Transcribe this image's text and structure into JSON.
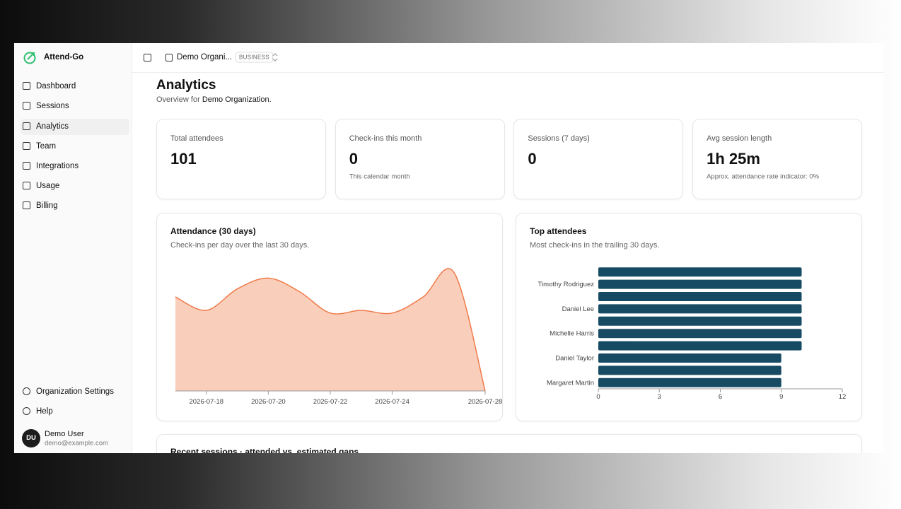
{
  "sidebar": {
    "brand": "Attend-Go",
    "nav": [
      "Dashboard",
      "Sessions",
      "Analytics",
      "Team",
      "Integrations",
      "Usage",
      "Billing"
    ],
    "footer_nav": [
      "Organization Settings",
      "Help"
    ],
    "user": {
      "initials": "DU",
      "name": "Demo User",
      "email": "demo@example.com"
    }
  },
  "topbar": {
    "org": "Demo Organi...",
    "plan": "BUSINESS"
  },
  "header": {
    "title": "Analytics",
    "subtitle": "Overview for",
    "org": "Demo Organization."
  },
  "stats": [
    {
      "label": "Total attendees",
      "value": "101"
    },
    {
      "label": "Check-ins this month",
      "value": "0",
      "note": "This calendar month"
    },
    {
      "label": "Sessions (7 days)",
      "value": "0"
    },
    {
      "label": "Avg session length",
      "value": "1h 25m",
      "note": "Approx. attendance rate indicator: 0%"
    }
  ],
  "chart_data": [
    {
      "type": "area",
      "title": "Attendance (30 days)",
      "subtitle": "Check-ins per day over the last 30 days.",
      "categories": [
        null,
        "2026-07-18",
        null,
        "2026-07-20",
        null,
        "2026-07-22",
        null,
        "2026-07-24",
        null,
        null,
        "2026-07-28"
      ],
      "values": [
        35,
        30,
        38,
        42,
        37,
        29,
        30,
        29,
        35,
        44,
        0
      ],
      "ylim": [
        0,
        45
      ],
      "color": "#f07a4a",
      "fill": "#f9cfbb"
    },
    {
      "type": "hbar",
      "title": "Top attendees",
      "subtitle": "Most check-ins in the trailing 30 days.",
      "categories": [
        null,
        "Timothy Rodriguez",
        null,
        "Daniel Lee",
        null,
        "Michelle Harris",
        null,
        "Daniel Taylor",
        null,
        "Margaret Martin"
      ],
      "values": [
        10,
        10,
        10,
        10,
        10,
        10,
        10,
        9,
        9,
        9
      ],
      "xlim": [
        0,
        12
      ],
      "xticks": [
        0,
        3,
        6,
        9,
        12
      ],
      "color": "#164b63"
    }
  ],
  "recent": {
    "title": "Recent sessions · attended vs. estimated gaps"
  }
}
